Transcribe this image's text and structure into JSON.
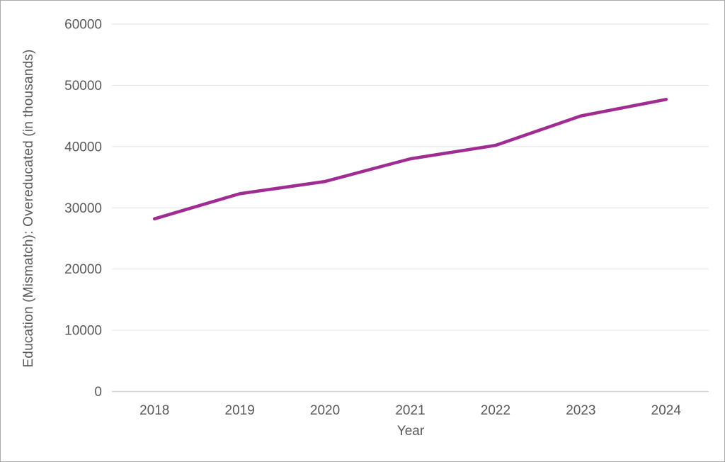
{
  "chart_data": {
    "type": "line",
    "categories": [
      "2018",
      "2019",
      "2020",
      "2021",
      "2022",
      "2023",
      "2024"
    ],
    "series": [
      {
        "name": "Overeducated",
        "values": [
          28200,
          32300,
          34300,
          38000,
          40200,
          45000,
          47700
        ]
      }
    ],
    "title": "",
    "xlabel": "Year",
    "ylabel": "Education (Mismatch): Overeducated (in thousands)",
    "ylim": [
      0,
      60000
    ],
    "ytick_step": 10000,
    "grid": true,
    "legend_position": "none",
    "colors": {
      "line": "#A02B93",
      "text": "#595959",
      "gridline": "#E7E7E7",
      "axis_line": "#D4D4D4",
      "frame_border": "#ABABAB",
      "background": "#FFFFFF"
    }
  }
}
